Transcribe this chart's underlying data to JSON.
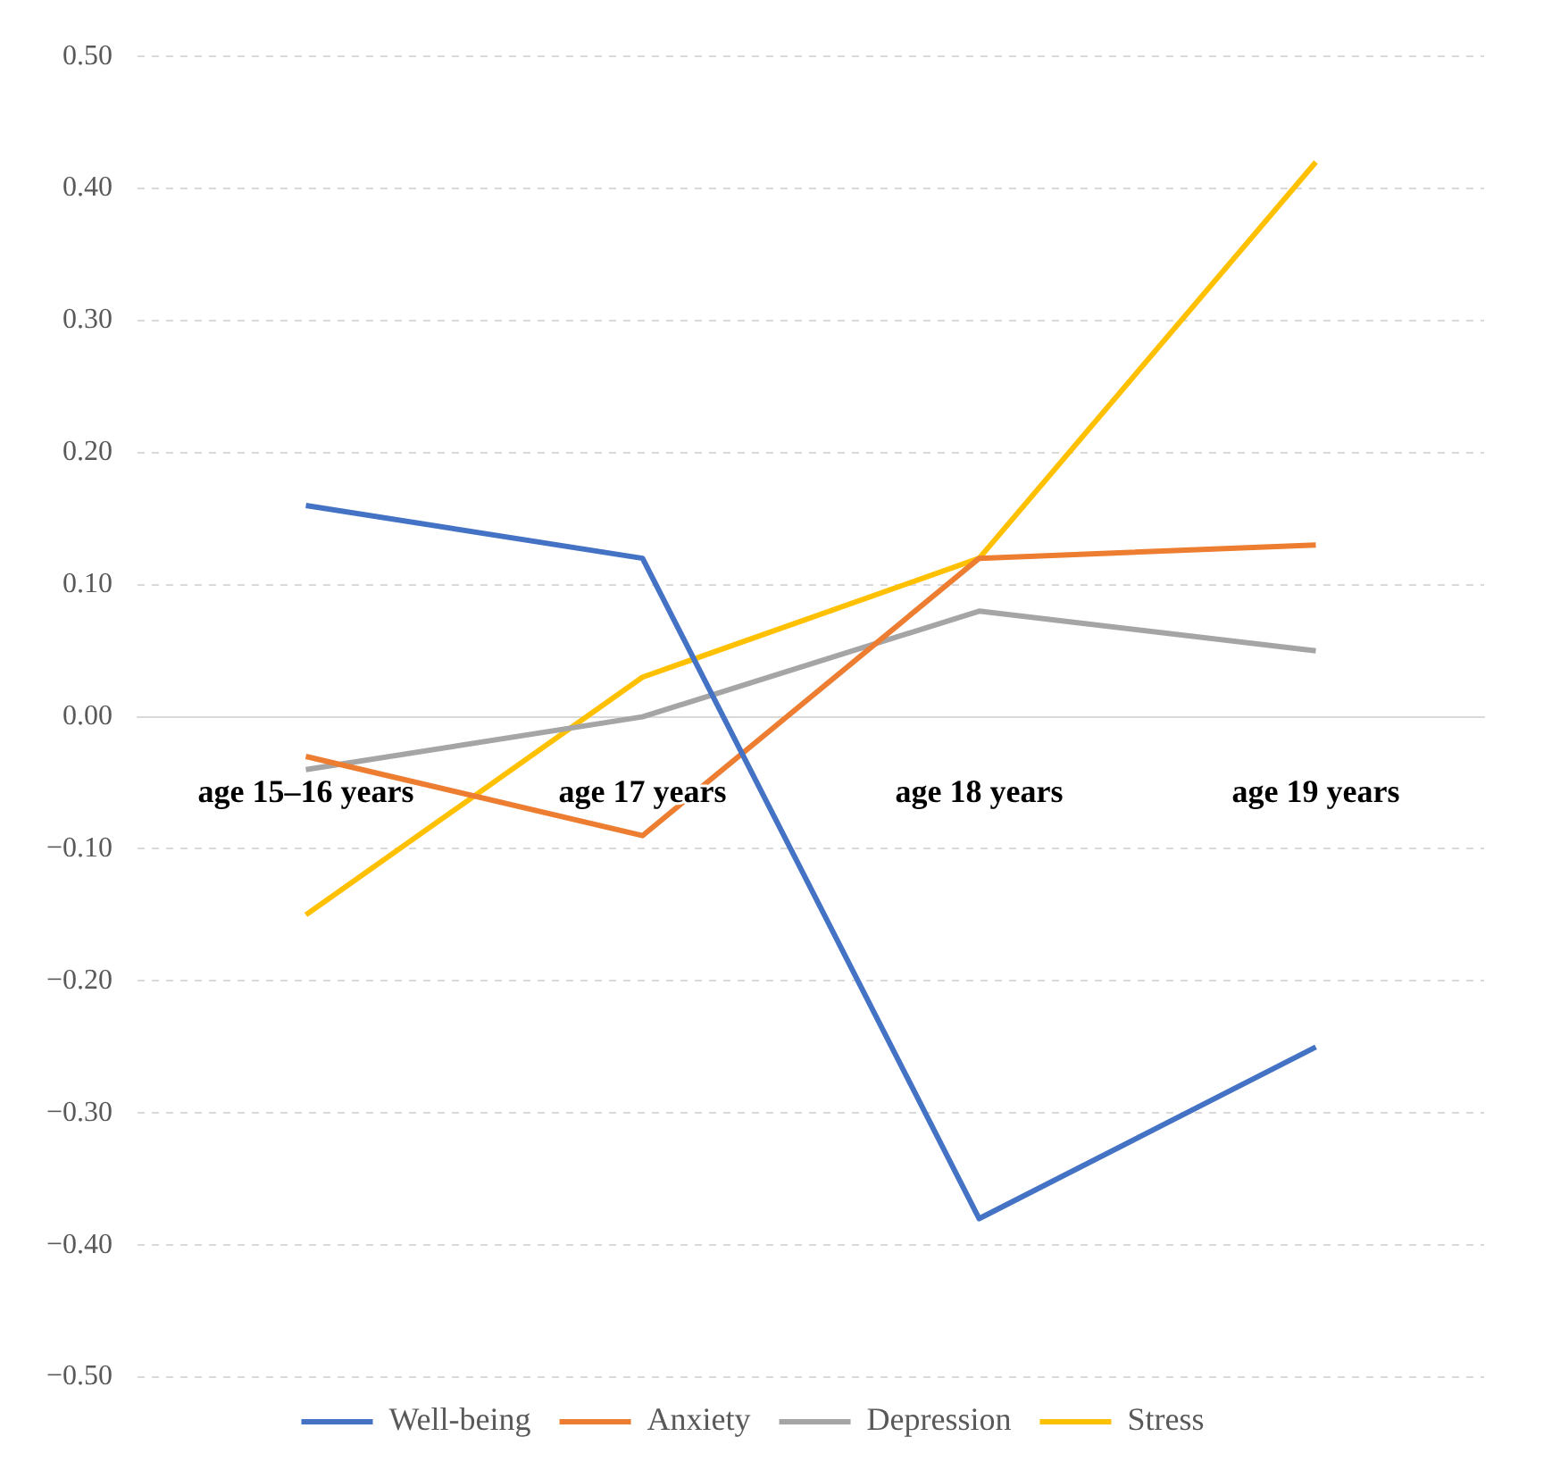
{
  "chart_data": {
    "type": "line",
    "categories": [
      "age 15–16 years",
      "age 17 years",
      "age 18 years",
      "age 19 years"
    ],
    "series": [
      {
        "name": "Well-being",
        "color": "#4472c4",
        "values": [
          0.16,
          0.12,
          -0.38,
          -0.25
        ]
      },
      {
        "name": "Anxiety",
        "color": "#ed7d31",
        "values": [
          -0.03,
          -0.09,
          0.12,
          0.13
        ]
      },
      {
        "name": "Depression",
        "color": "#a5a5a5",
        "values": [
          -0.04,
          0.0,
          0.08,
          0.05
        ]
      },
      {
        "name": "Stress",
        "color": "#ffc000",
        "values": [
          -0.15,
          0.03,
          0.12,
          0.42
        ]
      }
    ],
    "ylim": [
      -0.5,
      0.5
    ],
    "yticks": [
      {
        "value": -0.5,
        "label": "−0.50"
      },
      {
        "value": -0.4,
        "label": "−0.40"
      },
      {
        "value": -0.3,
        "label": "−0.30"
      },
      {
        "value": -0.2,
        "label": "−0.20"
      },
      {
        "value": -0.1,
        "label": "−0.10"
      },
      {
        "value": 0,
        "label": "0.00"
      },
      {
        "value": 0.1,
        "label": "0.10"
      },
      {
        "value": 0.2,
        "label": "0.20"
      },
      {
        "value": 0.3,
        "label": "0.30"
      },
      {
        "value": 0.4,
        "label": "0.40"
      },
      {
        "value": 0.5,
        "label": "0.50"
      }
    ],
    "grid": "y",
    "legend": "bottom",
    "marker": "none",
    "line_style": "solid"
  }
}
